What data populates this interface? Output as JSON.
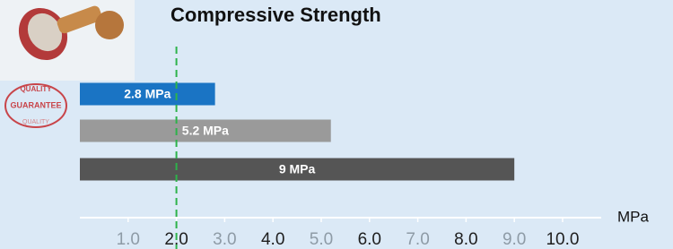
{
  "chart_data": {
    "type": "hbar",
    "title": "Compressive Strength",
    "categories": [
      null,
      null,
      null
    ],
    "values": [
      2.8,
      5.2,
      9
    ],
    "value_labels": [
      "2.8  MPa",
      "5.2  MPa",
      "9  MPa"
    ],
    "colors": [
      "#1a74c4",
      "#9a9a9a",
      "#555555"
    ],
    "xlabel": "MPa",
    "xlim": [
      0,
      10.8
    ],
    "xticks": [
      {
        "value": 1,
        "label": "1.0"
      },
      {
        "value": 2,
        "label": "2.0"
      },
      {
        "value": 3,
        "label": "3.0"
      },
      {
        "value": 4,
        "label": "4.0"
      },
      {
        "value": 5,
        "label": "5.0"
      },
      {
        "value": 6,
        "label": "6.0"
      },
      {
        "value": 7,
        "label": "7.0"
      },
      {
        "value": 8,
        "label": "8.0"
      },
      {
        "value": 9,
        "label": "9.0"
      },
      {
        "value": 10,
        "label": "10.0"
      }
    ],
    "reference_line": {
      "value": 2,
      "color": "#2db34a"
    },
    "stamp_labels": [
      "QUALITY",
      "GUARANTEE",
      "QUALITY"
    ]
  }
}
